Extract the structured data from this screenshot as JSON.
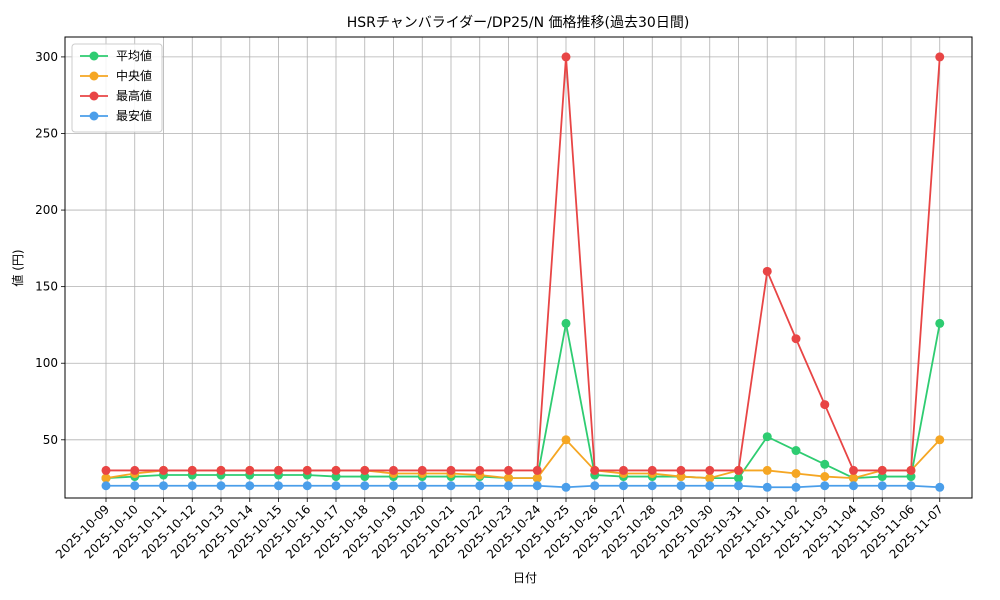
{
  "chart_data": {
    "type": "line",
    "title": "HSRチャンバライダー/DP25/N 価格推移(過去30日間)",
    "xlabel": "日付",
    "ylabel": "値 (円)",
    "ylim": [
      12,
      313
    ],
    "yticks": [
      50,
      100,
      150,
      200,
      250,
      300
    ],
    "grid": true,
    "legend": "top-left",
    "categories": [
      "2025-10-09",
      "2025-10-10",
      "2025-10-11",
      "2025-10-12",
      "2025-10-13",
      "2025-10-14",
      "2025-10-15",
      "2025-10-16",
      "2025-10-17",
      "2025-10-18",
      "2025-10-19",
      "2025-10-20",
      "2025-10-21",
      "2025-10-22",
      "2025-10-23",
      "2025-10-24",
      "2025-10-25",
      "2025-10-26",
      "2025-10-27",
      "2025-10-28",
      "2025-10-29",
      "2025-10-30",
      "2025-10-31",
      "2025-11-01",
      "2025-11-02",
      "2025-11-03",
      "2025-11-04",
      "2025-11-05",
      "2025-11-06",
      "2025-11-07"
    ],
    "series": [
      {
        "name": "平均値",
        "color": "#2ecc71",
        "values": [
          25,
          26,
          27,
          27,
          27,
          27,
          27,
          27,
          26,
          26,
          26,
          26,
          26,
          26,
          25,
          25,
          126,
          27,
          26,
          26,
          26,
          25,
          25,
          52,
          43,
          34,
          25,
          26,
          26,
          126
        ]
      },
      {
        "name": "中央値",
        "color": "#f5a623",
        "values": [
          25,
          28,
          30,
          30,
          30,
          30,
          30,
          30,
          30,
          30,
          28,
          28,
          28,
          27,
          25,
          25,
          50,
          30,
          28,
          28,
          26,
          25,
          30,
          30,
          28,
          26,
          25,
          30,
          30,
          50
        ]
      },
      {
        "name": "最高値",
        "color": "#e84545",
        "values": [
          30,
          30,
          30,
          30,
          30,
          30,
          30,
          30,
          30,
          30,
          30,
          30,
          30,
          30,
          30,
          30,
          300,
          30,
          30,
          30,
          30,
          30,
          30,
          160,
          116,
          73,
          30,
          30,
          30,
          300
        ]
      },
      {
        "name": "最安値",
        "color": "#4a9eea",
        "values": [
          20,
          20,
          20,
          20,
          20,
          20,
          20,
          20,
          20,
          20,
          20,
          20,
          20,
          20,
          20,
          20,
          19,
          20,
          20,
          20,
          20,
          20,
          20,
          19,
          19,
          20,
          20,
          20,
          20,
          19
        ]
      }
    ]
  }
}
